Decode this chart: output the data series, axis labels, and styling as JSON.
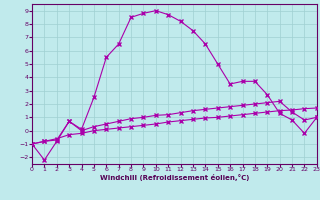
{
  "xlabel": "Windchill (Refroidissement éolien,°C)",
  "bg_color": "#c0eaec",
  "grid_color": "#9fd0d2",
  "line_color": "#aa00aa",
  "xlim": [
    0,
    23
  ],
  "ylim": [
    -2.5,
    9.5
  ],
  "yticks": [
    -2,
    -1,
    0,
    1,
    2,
    3,
    4,
    5,
    6,
    7,
    8,
    9
  ],
  "xticks": [
    0,
    1,
    2,
    3,
    4,
    5,
    6,
    7,
    8,
    9,
    10,
    11,
    12,
    13,
    14,
    15,
    16,
    17,
    18,
    19,
    20,
    21,
    22,
    23
  ],
  "series1_x": [
    0,
    1,
    2,
    3,
    4,
    5,
    6,
    7,
    8,
    9,
    10,
    11,
    12,
    13,
    14,
    15,
    16,
    17,
    18,
    19,
    20,
    21,
    22,
    23
  ],
  "series1_y": [
    -1.0,
    -2.2,
    -0.8,
    0.7,
    0.1,
    2.5,
    5.5,
    6.5,
    8.5,
    8.8,
    9.0,
    8.7,
    8.2,
    7.5,
    6.5,
    5.0,
    3.5,
    3.7,
    3.7,
    2.7,
    1.3,
    0.8,
    -0.2,
    1.0
  ],
  "series2_x": [
    0,
    1,
    2,
    3,
    4,
    5,
    6,
    7,
    8,
    9,
    10,
    11,
    12,
    13,
    14,
    15,
    16,
    17,
    18,
    19,
    20,
    21,
    22,
    23
  ],
  "series2_y": [
    -1.0,
    -0.8,
    -0.7,
    0.7,
    0.0,
    0.3,
    0.5,
    0.7,
    0.9,
    1.0,
    1.15,
    1.2,
    1.35,
    1.5,
    1.6,
    1.7,
    1.8,
    1.9,
    2.0,
    2.1,
    2.2,
    1.4,
    0.8,
    1.0
  ],
  "series3_x": [
    0,
    1,
    2,
    3,
    4,
    5,
    6,
    7,
    8,
    9,
    10,
    11,
    12,
    13,
    14,
    15,
    16,
    17,
    18,
    19,
    20,
    21,
    22,
    23
  ],
  "series3_y": [
    -1.0,
    -0.8,
    -0.6,
    -0.3,
    -0.2,
    0.0,
    0.1,
    0.2,
    0.3,
    0.4,
    0.5,
    0.65,
    0.75,
    0.85,
    0.95,
    1.0,
    1.1,
    1.2,
    1.3,
    1.4,
    1.5,
    1.55,
    1.65,
    1.7
  ]
}
